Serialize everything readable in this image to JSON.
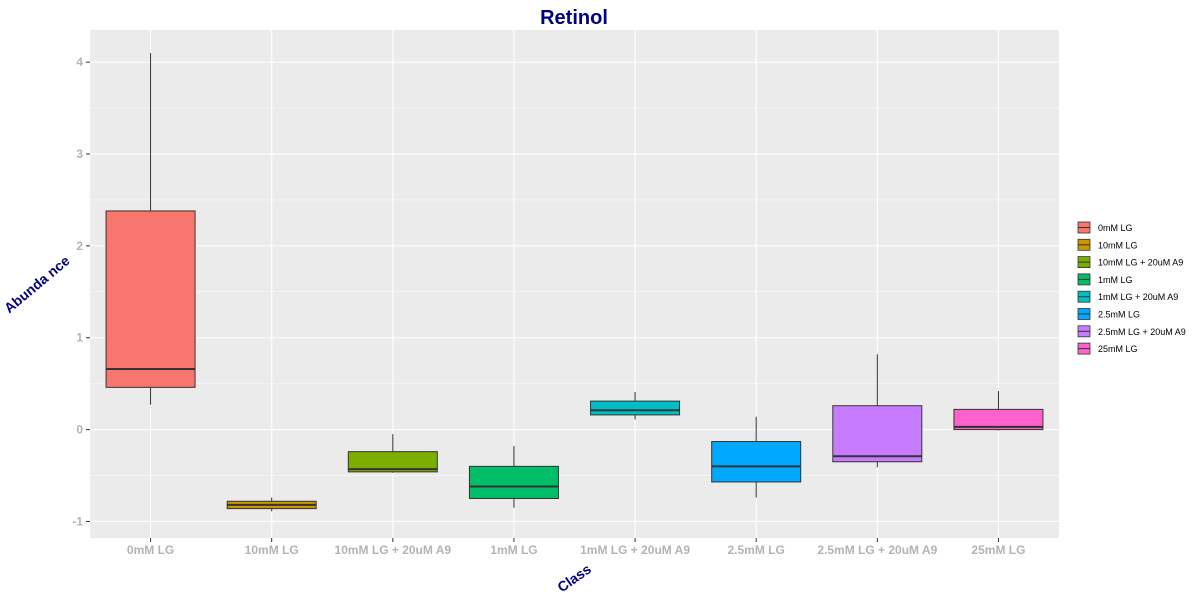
{
  "chart_data": {
    "type": "boxplot",
    "title": "Retinol",
    "xlabel": "Class",
    "ylabel": "Abunda nce",
    "ylim": [
      -1.18,
      4.35
    ],
    "yticks": [
      -1,
      0,
      1,
      2,
      3,
      4
    ],
    "grid": true,
    "legend_position": "right",
    "colors": {
      "title": "#00007f",
      "axis_title": "#00007f",
      "tick_label": "#b3b3b3",
      "panel": "#ebebeb",
      "grid": "#ffffff"
    },
    "categories": [
      "0mM LG",
      "10mM LG",
      "10mM LG + 20uM A9",
      "1mM LG",
      "1mM LG + 20uM A9",
      "2.5mM LG",
      "2.5mM LG + 20uM A9",
      "25mM LG"
    ],
    "series": [
      {
        "name": "0mM LG",
        "color": "#f8766d",
        "min": 0.27,
        "q1": 0.46,
        "median": 0.66,
        "q3": 2.38,
        "max": 4.1
      },
      {
        "name": "10mM LG",
        "color": "#cd9600",
        "min": -0.89,
        "q1": -0.86,
        "median": -0.82,
        "q3": -0.78,
        "max": -0.74
      },
      {
        "name": "10mM LG + 20uM A9",
        "color": "#7cae00",
        "min": -0.47,
        "q1": -0.46,
        "median": -0.43,
        "q3": -0.24,
        "max": -0.05
      },
      {
        "name": "1mM LG",
        "color": "#00be67",
        "min": -0.85,
        "q1": -0.75,
        "median": -0.62,
        "q3": -0.4,
        "max": -0.18
      },
      {
        "name": "1mM LG + 20uM A9",
        "color": "#00bfc4",
        "min": 0.11,
        "q1": 0.16,
        "median": 0.21,
        "q3": 0.31,
        "max": 0.41
      },
      {
        "name": "2.5mM LG",
        "color": "#00a9ff",
        "min": -0.74,
        "q1": -0.57,
        "median": -0.4,
        "q3": -0.13,
        "max": 0.14
      },
      {
        "name": "2.5mM LG + 20uM A9",
        "color": "#c77cff",
        "min": -0.41,
        "q1": -0.35,
        "median": -0.29,
        "q3": 0.26,
        "max": 0.82
      },
      {
        "name": "25mM LG",
        "color": "#ff61cc",
        "min": -0.01,
        "q1": 0.0,
        "median": 0.03,
        "q3": 0.22,
        "max": 0.42
      }
    ]
  }
}
